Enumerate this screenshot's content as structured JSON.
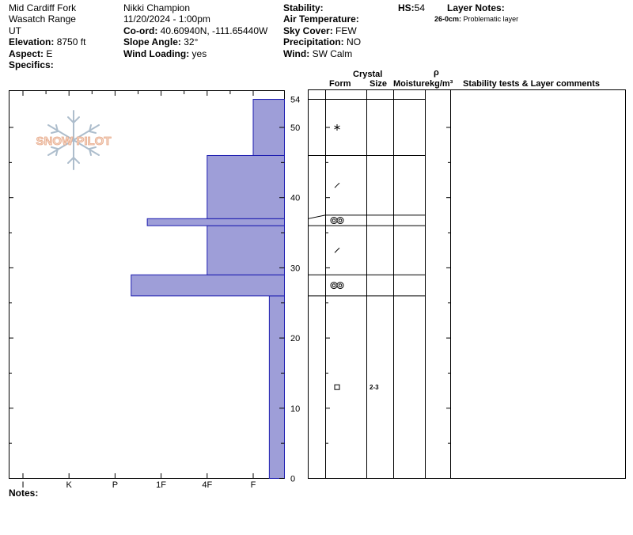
{
  "header": {
    "location": "Mid Cardiff Fork",
    "range": "Wasatch Range",
    "state": "UT",
    "elevation_label": "Elevation:",
    "elevation_value": "8750 ft",
    "aspect_label": "Aspect:",
    "aspect_value": "E",
    "specifics_label": "Specifics:",
    "observer": "Nikki Champion",
    "datetime": "11/20/2024 - 1:00pm",
    "coord_label": "Co-ord:",
    "coord_value": "40.60940N, -111.65440W",
    "slope_label": "Slope Angle:",
    "slope_value": "32°",
    "wind_loading_label": "Wind Loading:",
    "wind_loading_value": "yes",
    "stability_label": "Stability:",
    "air_temp_label": "Air Temperature:",
    "sky_label": "Sky Cover:",
    "sky_value": "FEW",
    "precip_label": "Precipitation:",
    "precip_value": "NO",
    "wind_label": "Wind:",
    "wind_value": "SW Calm",
    "hs_label": "HS:",
    "hs_value": "54",
    "layer_notes_label": "Layer Notes:",
    "layer_note_depth": "26-0cm:",
    "layer_note_text": "Problematic layer",
    "notes_label": "Notes:"
  },
  "logo": {
    "text": "SNOW PILOT"
  },
  "table_headers": {
    "crystal": "Crystal",
    "form": "Form",
    "size": "Size",
    "moisture": "Moisture",
    "rho": "ρ",
    "density": "kg/m³",
    "comments": "Stability tests & Layer comments"
  },
  "chart_data": {
    "type": "bar",
    "orientation": "horizontal",
    "title": "",
    "xlabel": "",
    "ylabel": "",
    "x_categories": [
      "I",
      "K",
      "P",
      "1F",
      "4F",
      "F"
    ],
    "y_ticks": [
      0,
      10,
      20,
      30,
      40,
      50,
      54
    ],
    "ylim": [
      0,
      54
    ],
    "hardness_scale_note": "I=0 ... F=5",
    "hardness_profile": [
      {
        "bottom": 0,
        "top": 26,
        "hardness": 5.35
      },
      {
        "bottom": 26,
        "top": 29,
        "hardness": 2.35
      },
      {
        "bottom": 29,
        "top": 36,
        "hardness": 4.0
      },
      {
        "bottom": 36,
        "top": 37,
        "hardness": 2.7
      },
      {
        "bottom": 37,
        "top": 46,
        "hardness": 4.0
      },
      {
        "bottom": 46,
        "top": 54,
        "hardness": 5.0
      }
    ],
    "bar_color": "#9e9ed8",
    "bar_edge": "#1d1db0",
    "layers": [
      {
        "bottom": 0,
        "top": 26,
        "form": "square",
        "size": "2-3",
        "moisture": ""
      },
      {
        "bottom": 26,
        "top": 29,
        "form": "double-circle",
        "size": "",
        "moisture": ""
      },
      {
        "bottom": 29,
        "top": 36,
        "form": "slash",
        "size": "",
        "moisture": ""
      },
      {
        "bottom": 36,
        "top": 37.5,
        "form": "double-circle",
        "size": "",
        "moisture": ""
      },
      {
        "bottom": 37.5,
        "top": 46,
        "form": "slash",
        "size": "",
        "moisture": ""
      },
      {
        "bottom": 46,
        "top": 54,
        "form": "asterisk",
        "size": "",
        "moisture": ""
      }
    ]
  }
}
